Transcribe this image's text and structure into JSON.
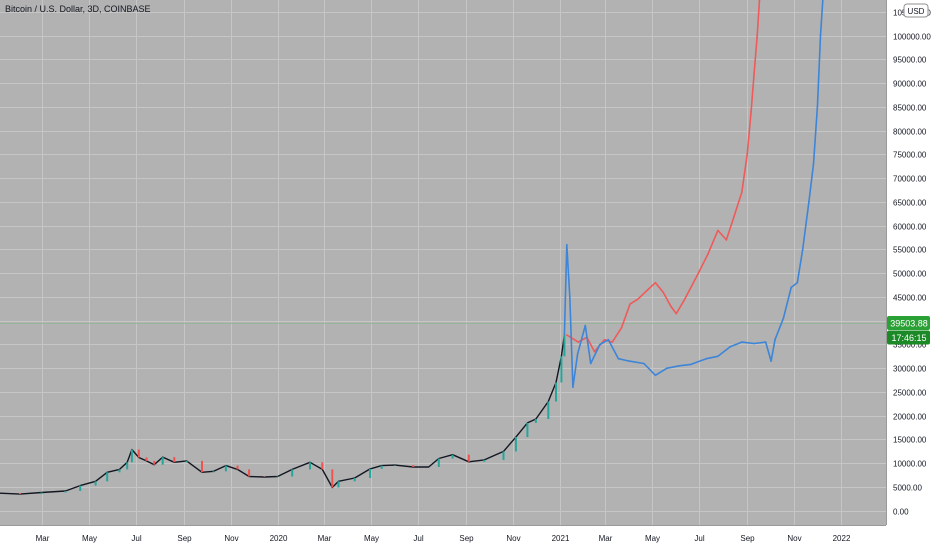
{
  "chart_data": {
    "type": "line",
    "title": "Bitcoin / U.S. Dollar, 3D, COINBASE",
    "currency_label": "USD",
    "price_label": "39503.88",
    "countdown_label": "17:46:15",
    "y_ticks": [
      "105000.00",
      "100000.00",
      "95000.00",
      "90000.00",
      "85000.00",
      "80000.00",
      "75000.00",
      "70000.00",
      "65000.00",
      "60000.00",
      "55000.00",
      "50000.00",
      "45000.00",
      "40000.00",
      "35000.00",
      "30000.00",
      "25000.00",
      "20000.00",
      "15000.00",
      "10000.00",
      "5000.00",
      "0.00"
    ],
    "y_tick_values": [
      105000,
      100000,
      95000,
      90000,
      85000,
      80000,
      75000,
      70000,
      65000,
      60000,
      55000,
      50000,
      45000,
      40000,
      35000,
      30000,
      25000,
      20000,
      15000,
      10000,
      5000,
      0
    ],
    "x_ticks": [
      "Mar",
      "May",
      "Jul",
      "Sep",
      "Nov",
      "2020",
      "Mar",
      "May",
      "Jul",
      "Sep",
      "Nov",
      "2021",
      "Mar",
      "May",
      "Jul",
      "Sep",
      "Nov",
      "2022"
    ],
    "x_tick_dates": [
      "2019-03-01",
      "2019-05-01",
      "2019-07-01",
      "2019-09-01",
      "2019-11-01",
      "2020-01-01",
      "2020-03-01",
      "2020-05-01",
      "2020-07-01",
      "2020-09-01",
      "2020-11-01",
      "2021-01-01",
      "2021-03-01",
      "2021-05-01",
      "2021-07-01",
      "2021-09-01",
      "2021-11-01",
      "2022-01-01"
    ],
    "ylim": [
      -3000,
      107500
    ],
    "xlim": [
      "2019-01-06",
      "2022-02-28"
    ],
    "grid": true,
    "colors": {
      "background": "#b2b2b2",
      "grid": "#c6c6c6",
      "price": "#131722",
      "candle_up": "#26a69a",
      "candle_down": "#ef5350",
      "projection_red": "#ef5a5a",
      "projection_blue": "#3d85d8",
      "badge_price": "#2aa135",
      "badge_time": "#1b8a26",
      "axis_bg": "#ffffff",
      "price_line": "#9ab49a"
    },
    "series": [
      {
        "kind": "price",
        "points": [
          [
            "2019-01-06",
            3700
          ],
          [
            "2019-02-01",
            3500
          ],
          [
            "2019-03-01",
            3850
          ],
          [
            "2019-04-01",
            4150
          ],
          [
            "2019-04-20",
            5300
          ],
          [
            "2019-05-10",
            6200
          ],
          [
            "2019-05-25",
            8100
          ],
          [
            "2019-06-10",
            8700
          ],
          [
            "2019-06-20",
            10200
          ],
          [
            "2019-06-26",
            12900
          ],
          [
            "2019-07-05",
            11200
          ],
          [
            "2019-07-15",
            10500
          ],
          [
            "2019-07-25",
            9700
          ],
          [
            "2019-08-05",
            11300
          ],
          [
            "2019-08-20",
            10200
          ],
          [
            "2019-09-05",
            10500
          ],
          [
            "2019-09-25",
            8100
          ],
          [
            "2019-10-10",
            8300
          ],
          [
            "2019-10-26",
            9500
          ],
          [
            "2019-11-10",
            8700
          ],
          [
            "2019-11-25",
            7200
          ],
          [
            "2019-12-15",
            7100
          ],
          [
            "2020-01-01",
            7200
          ],
          [
            "2020-01-20",
            8700
          ],
          [
            "2020-02-12",
            10200
          ],
          [
            "2020-02-28",
            8700
          ],
          [
            "2020-03-12",
            4900
          ],
          [
            "2020-03-20",
            6200
          ],
          [
            "2020-04-10",
            6900
          ],
          [
            "2020-04-30",
            8800
          ],
          [
            "2020-05-15",
            9500
          ],
          [
            "2020-06-01",
            9600
          ],
          [
            "2020-06-25",
            9200
          ],
          [
            "2020-07-15",
            9200
          ],
          [
            "2020-07-28",
            11000
          ],
          [
            "2020-08-15",
            11800
          ],
          [
            "2020-09-05",
            10300
          ],
          [
            "2020-09-25",
            10700
          ],
          [
            "2020-10-20",
            12500
          ],
          [
            "2020-11-05",
            15500
          ],
          [
            "2020-11-20",
            18500
          ],
          [
            "2020-12-01",
            19300
          ],
          [
            "2020-12-17",
            23000
          ],
          [
            "2020-12-27",
            27000
          ],
          [
            "2021-01-03",
            32500
          ],
          [
            "2021-01-07",
            37000
          ]
        ]
      },
      {
        "kind": "projection",
        "name": "red",
        "points": [
          [
            "2021-01-10",
            37000
          ],
          [
            "2021-01-25",
            35500
          ],
          [
            "2021-02-05",
            36500
          ],
          [
            "2021-02-15",
            33500
          ],
          [
            "2021-02-28",
            36000
          ],
          [
            "2021-03-10",
            35500
          ],
          [
            "2021-03-22",
            38500
          ],
          [
            "2021-04-02",
            43500
          ],
          [
            "2021-04-12",
            44500
          ],
          [
            "2021-04-25",
            46500
          ],
          [
            "2021-05-05",
            48000
          ],
          [
            "2021-05-15",
            46000
          ],
          [
            "2021-05-25",
            43000
          ],
          [
            "2021-06-01",
            41500
          ],
          [
            "2021-06-12",
            44500
          ],
          [
            "2021-06-28",
            49500
          ],
          [
            "2021-07-12",
            54000
          ],
          [
            "2021-07-25",
            59000
          ],
          [
            "2021-08-05",
            57000
          ],
          [
            "2021-08-15",
            62000
          ],
          [
            "2021-08-25",
            67000
          ],
          [
            "2021-09-01",
            75000
          ],
          [
            "2021-09-06",
            84000
          ],
          [
            "2021-09-10",
            92000
          ],
          [
            "2021-09-14",
            100000
          ],
          [
            "2021-09-17",
            107500
          ]
        ]
      },
      {
        "kind": "projection",
        "name": "blue",
        "points": [
          [
            "2021-01-07",
            37000
          ],
          [
            "2021-01-10",
            56000
          ],
          [
            "2021-01-14",
            45000
          ],
          [
            "2021-01-18",
            26000
          ],
          [
            "2021-01-24",
            33000
          ],
          [
            "2021-02-03",
            39000
          ],
          [
            "2021-02-10",
            31000
          ],
          [
            "2021-02-22",
            35000
          ],
          [
            "2021-03-05",
            36000
          ],
          [
            "2021-03-18",
            32000
          ],
          [
            "2021-04-01",
            31500
          ],
          [
            "2021-04-20",
            31000
          ],
          [
            "2021-05-05",
            28500
          ],
          [
            "2021-05-20",
            30000
          ],
          [
            "2021-06-05",
            30500
          ],
          [
            "2021-06-20",
            30800
          ],
          [
            "2021-07-10",
            32000
          ],
          [
            "2021-07-25",
            32500
          ],
          [
            "2021-08-10",
            34500
          ],
          [
            "2021-08-25",
            35500
          ],
          [
            "2021-09-10",
            35200
          ],
          [
            "2021-09-25",
            35500
          ],
          [
            "2021-10-02",
            31500
          ],
          [
            "2021-10-07",
            36000
          ],
          [
            "2021-10-18",
            40500
          ],
          [
            "2021-10-28",
            47000
          ],
          [
            "2021-11-05",
            48000
          ],
          [
            "2021-11-12",
            55000
          ],
          [
            "2021-11-20",
            65000
          ],
          [
            "2021-11-26",
            73000
          ],
          [
            "2021-12-01",
            85000
          ],
          [
            "2021-12-05",
            100000
          ],
          [
            "2021-12-08",
            107500
          ]
        ]
      }
    ]
  }
}
